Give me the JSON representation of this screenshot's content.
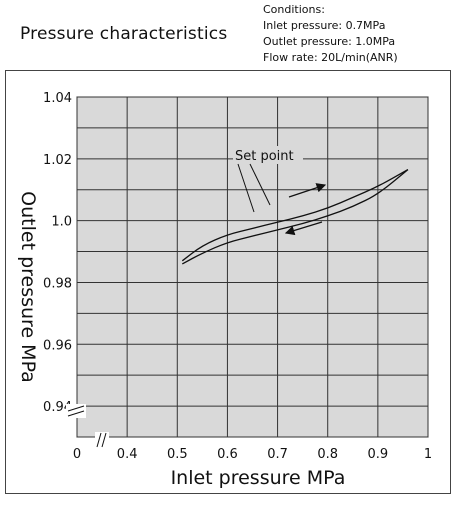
{
  "chart_data": {
    "type": "line",
    "title": "Pressure characteristics",
    "conditions": {
      "heading": "Conditions:",
      "lines": [
        "Inlet pressure: 0.7MPa",
        "Outlet pressure: 1.0MPa",
        "Flow rate: 20L/min(ANR)"
      ]
    },
    "xlabel": "Inlet pressure MPa",
    "ylabel": "Outlet pressure MPa",
    "xlim": [
      0.3,
      1.0
    ],
    "ylim": [
      0.93,
      1.04
    ],
    "x_ticks": [
      {
        "value": 0.3,
        "label": "0"
      },
      {
        "value": 0.4,
        "label": "0.4"
      },
      {
        "value": 0.5,
        "label": "0.5"
      },
      {
        "value": 0.6,
        "label": "0.6"
      },
      {
        "value": 0.7,
        "label": "0.7"
      },
      {
        "value": 0.8,
        "label": "0.8"
      },
      {
        "value": 0.9,
        "label": "0.9"
      },
      {
        "value": 1.0,
        "label": "1"
      }
    ],
    "y_ticks": [
      {
        "value": 0.94,
        "label": "0.94"
      },
      {
        "value": 0.96,
        "label": "0.96"
      },
      {
        "value": 0.98,
        "label": "0.98"
      },
      {
        "value": 1.0,
        "label": "1.0"
      },
      {
        "value": 1.02,
        "label": "1.02"
      },
      {
        "value": 1.04,
        "label": "1.04"
      }
    ],
    "grid": true,
    "axis_breaks": [
      "x",
      "y"
    ],
    "series": [
      {
        "direction": "increasing",
        "x": [
          0.51,
          0.55,
          0.6,
          0.65,
          0.7,
          0.75,
          0.8,
          0.85,
          0.9,
          0.96
        ],
        "y": [
          0.987,
          0.992,
          0.9955,
          0.9975,
          0.9995,
          1.0015,
          1.004,
          1.0075,
          1.011,
          1.0165
        ]
      },
      {
        "direction": "decreasing",
        "x": [
          0.96,
          0.9,
          0.85,
          0.8,
          0.75,
          0.7,
          0.65,
          0.6,
          0.55,
          0.51
        ],
        "y": [
          1.0165,
          1.0085,
          1.0045,
          1.0015,
          0.999,
          0.997,
          0.995,
          0.993,
          0.9895,
          0.986
        ]
      }
    ],
    "annotation": "Set point",
    "color": "#111111",
    "grid_color": "#333333",
    "plot_background": "#d9d9d9"
  }
}
